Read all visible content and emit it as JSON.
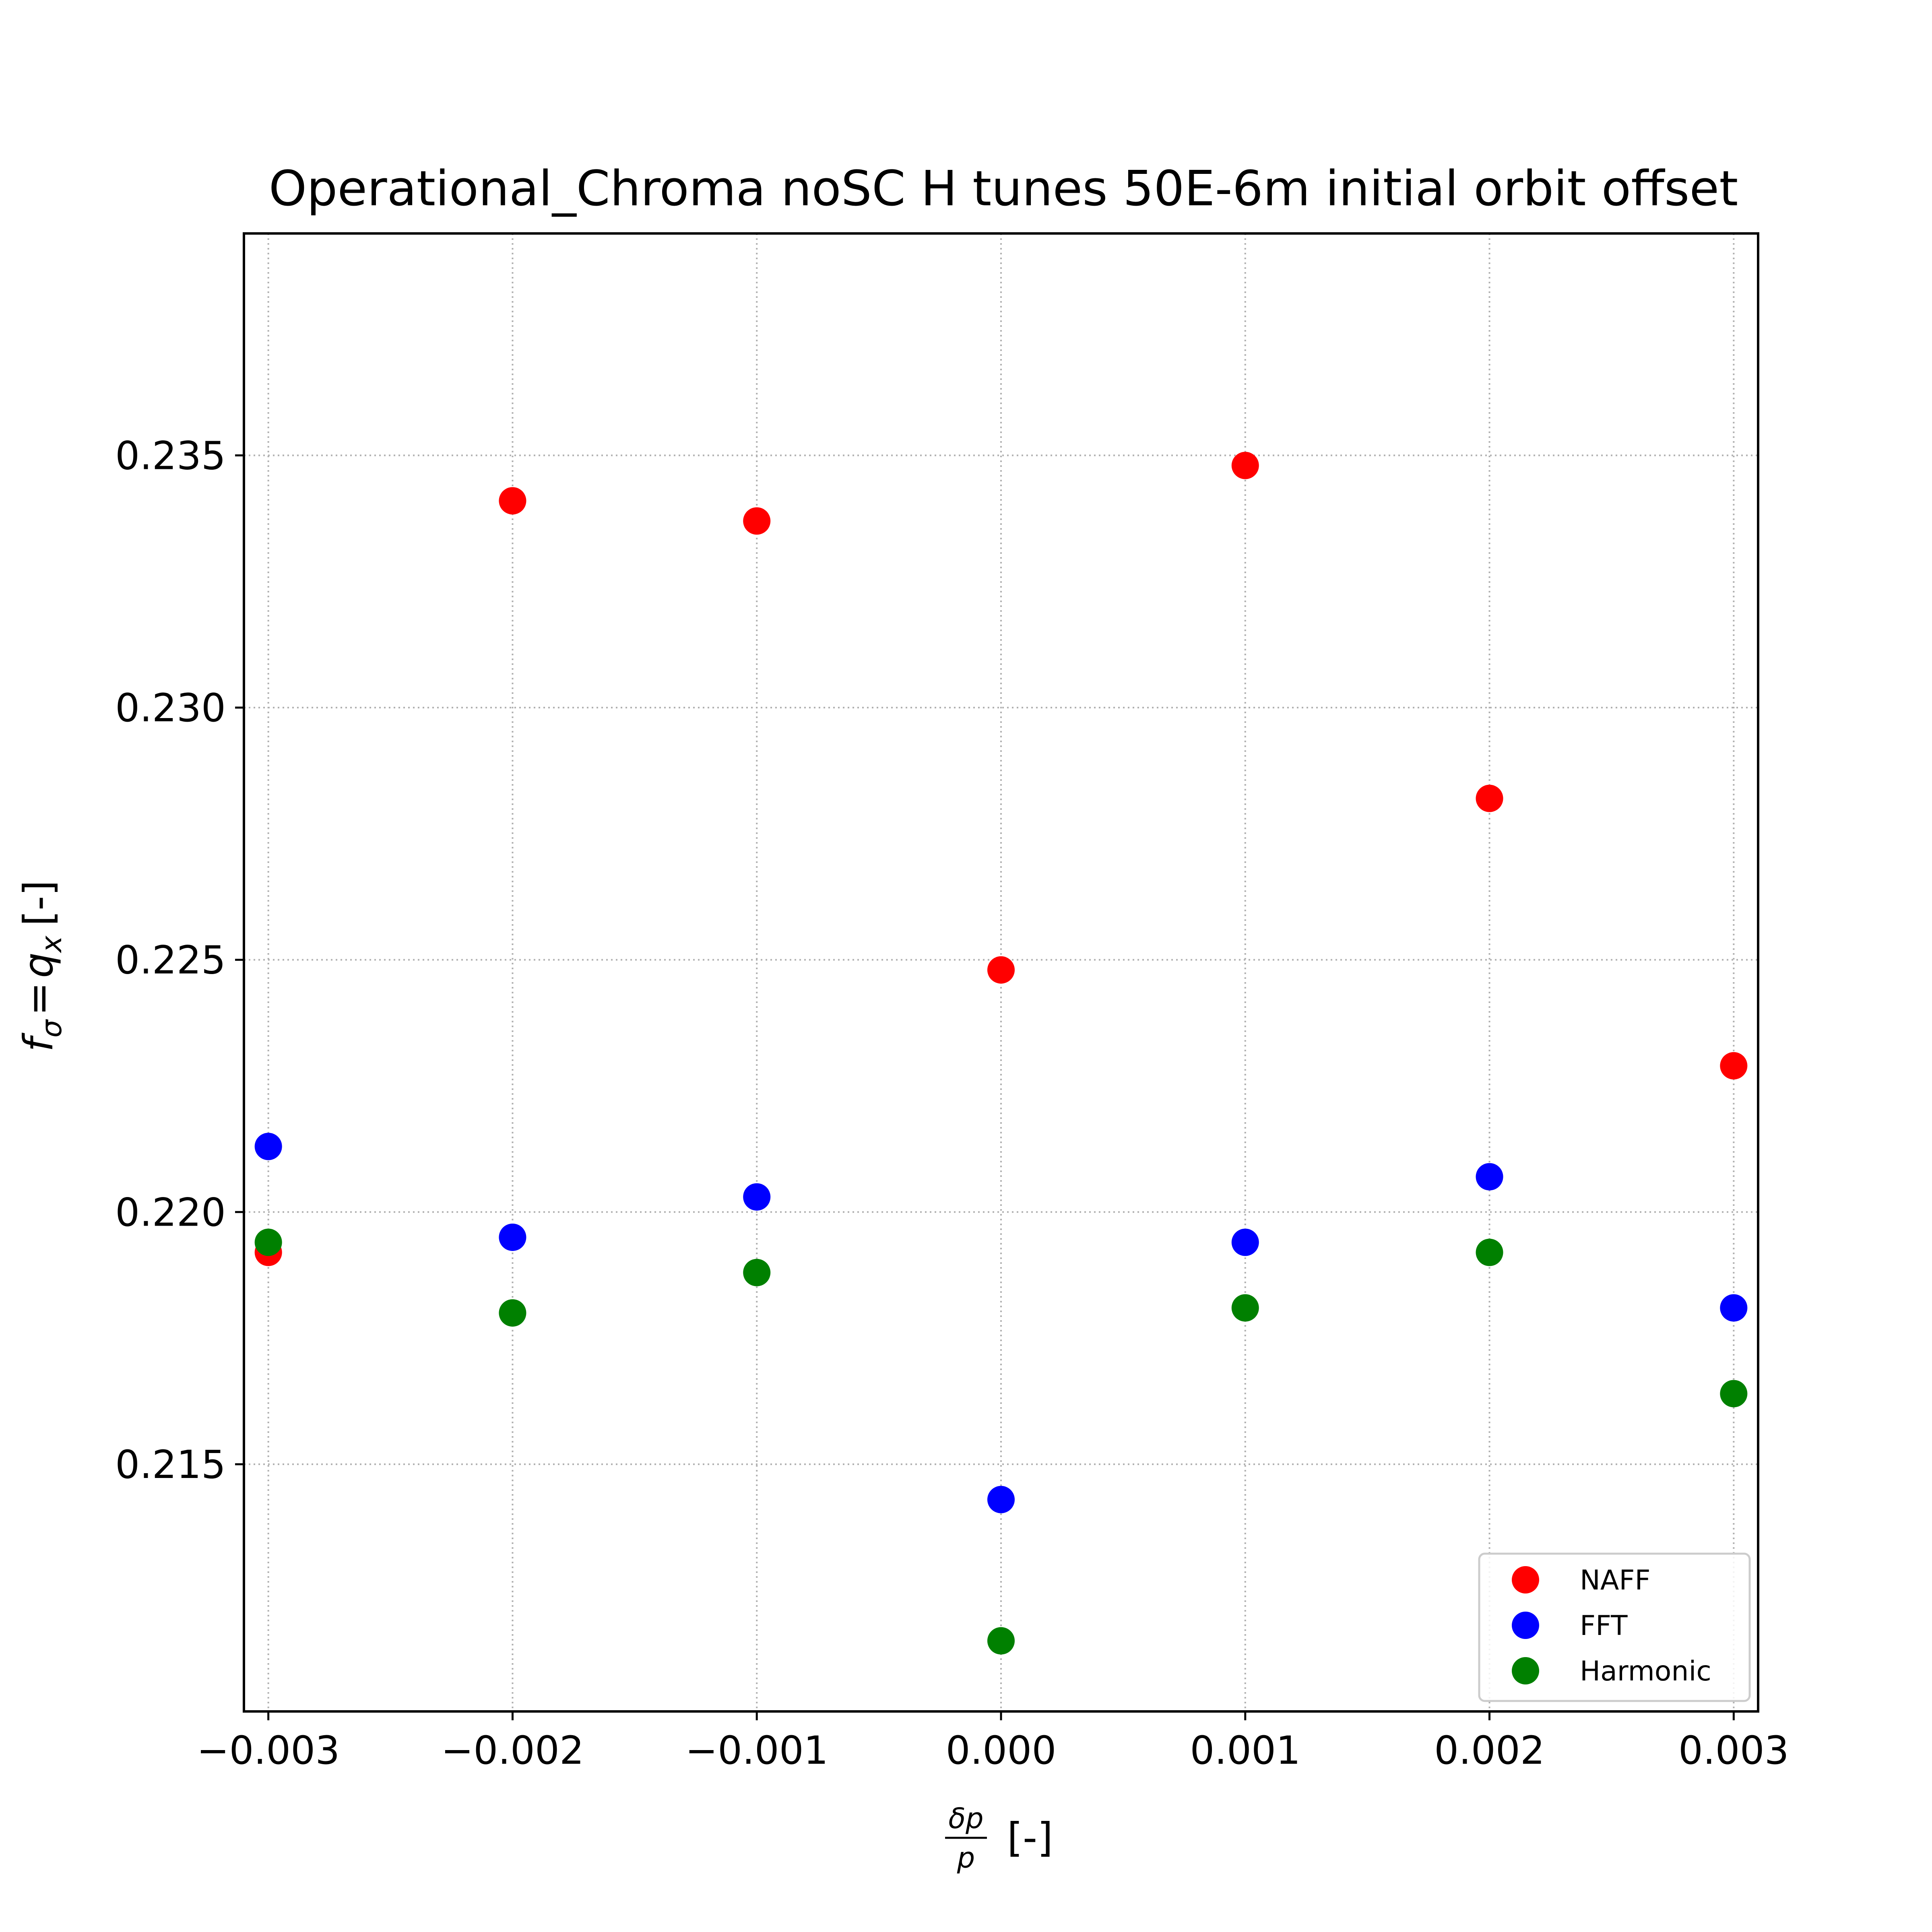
{
  "chart_data": {
    "type": "scatter",
    "title": "Operational_Chroma noSC H tunes 50E-6m initial orbit offset",
    "xlabel": {
      "frac_num": "δp",
      "frac_den": "p",
      "suffix": "[-]"
    },
    "ylabel": {
      "f": "f",
      "sub_sigma": "σ",
      "eq": "=",
      "q": "q",
      "sub_x": "x",
      "suffix": "[-]"
    },
    "xlim": [
      -0.0031,
      0.0031
    ],
    "ylim": [
      0.2101,
      0.2394
    ],
    "xticks": [
      -0.003,
      -0.002,
      -0.001,
      0.0,
      0.001,
      0.002,
      0.003
    ],
    "xtick_labels": [
      "−0.003",
      "−0.002",
      "−0.001",
      "0.000",
      "0.001",
      "0.002",
      "0.003"
    ],
    "yticks": [
      0.215,
      0.22,
      0.225,
      0.23,
      0.235
    ],
    "ytick_labels": [
      "0.215",
      "0.220",
      "0.225",
      "0.230",
      "0.235"
    ],
    "grid": true,
    "legend_position": "lower-right",
    "x": [
      -0.003,
      -0.002,
      -0.001,
      0.0,
      0.001,
      0.002,
      0.003
    ],
    "series": [
      {
        "name": "NAFF",
        "color": "#ff0000",
        "values": [
          0.2192,
          0.2341,
          0.2337,
          0.2248,
          0.2348,
          0.2282,
          0.2229
        ]
      },
      {
        "name": "FFT",
        "color": "#0000ff",
        "values": [
          0.2213,
          0.2195,
          0.2203,
          0.2143,
          0.2194,
          0.2207,
          0.2181
        ]
      },
      {
        "name": "Harmonic",
        "color": "#008000",
        "values": [
          0.2194,
          0.218,
          0.2188,
          0.2115,
          0.2181,
          0.2192,
          0.2164
        ]
      }
    ]
  }
}
